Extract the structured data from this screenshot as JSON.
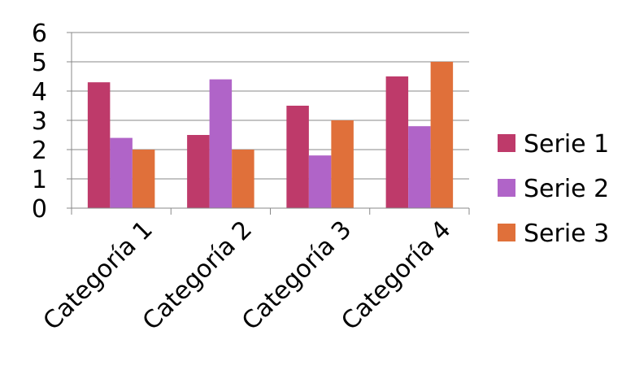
{
  "chart_data": {
    "type": "bar",
    "title": "",
    "xlabel": "",
    "ylabel": "",
    "categories": [
      "Categoría 1",
      "Categoría 2",
      "Categoría 3",
      "Categoría 4"
    ],
    "series": [
      {
        "name": "Serie 1",
        "color": "#BE3A6A",
        "values": [
          4.3,
          2.5,
          3.5,
          4.5
        ]
      },
      {
        "name": "Serie 2",
        "color": "#B064C8",
        "values": [
          2.4,
          4.4,
          1.8,
          2.8
        ]
      },
      {
        "name": "Serie 3",
        "color": "#E0703A",
        "values": [
          2,
          2,
          3,
          5
        ]
      }
    ],
    "ylim": [
      0,
      6
    ],
    "yticks": [
      0,
      1,
      2,
      3,
      4,
      5,
      6
    ],
    "grid": true,
    "legend": "right"
  }
}
